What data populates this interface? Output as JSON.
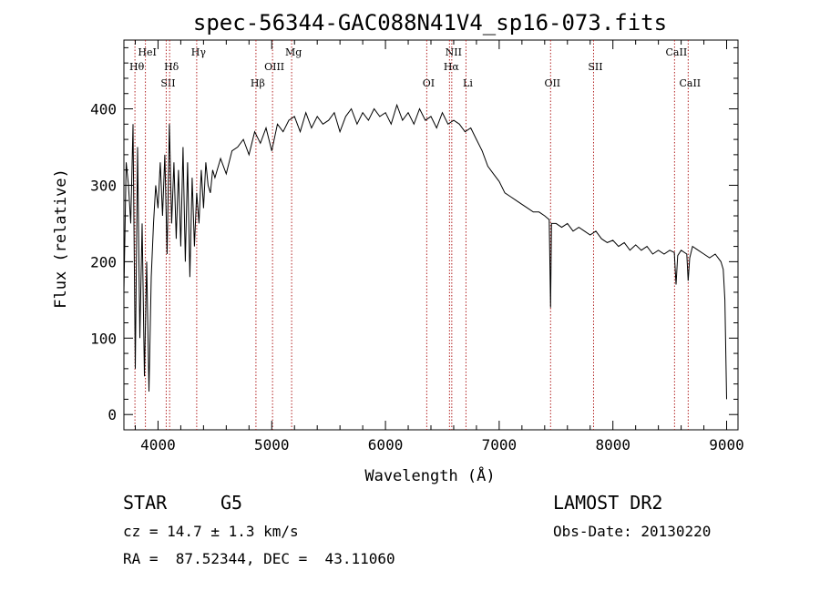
{
  "chart_data": {
    "type": "line",
    "title": "spec-56344-GAC088N41V4_sp16-073.fits",
    "xlabel": "Wavelength (Å)",
    "ylabel": "Flux (relative)",
    "xlim": [
      3700,
      9100
    ],
    "ylim": [
      -20,
      490
    ],
    "x_ticks": [
      4000,
      5000,
      6000,
      7000,
      8000,
      9000
    ],
    "y_ticks": [
      0,
      100,
      200,
      300,
      400
    ],
    "grid": false,
    "legend": "none",
    "line_color": "#000000",
    "marker_color": "#b22222",
    "spectral_lines": [
      {
        "label": "Hθ",
        "x": 3797,
        "row": 2
      },
      {
        "label": "HeI",
        "x": 3889,
        "row": 1
      },
      {
        "label": "SII",
        "x": 4072,
        "row": 3
      },
      {
        "label": "Hδ",
        "x": 4102,
        "row": 2
      },
      {
        "label": "Hγ",
        "x": 4340,
        "row": 1
      },
      {
        "label": "Hβ",
        "x": 4861,
        "row": 3
      },
      {
        "label": "OIII",
        "x": 5007,
        "row": 2
      },
      {
        "label": "Mg",
        "x": 5175,
        "row": 1
      },
      {
        "label": "OI",
        "x": 6363,
        "row": 3
      },
      {
        "label": "Hα",
        "x": 6563,
        "row": 2
      },
      {
        "label": "NII",
        "x": 6583,
        "row": 1
      },
      {
        "label": "Li",
        "x": 6708,
        "row": 3
      },
      {
        "label": "OII",
        "x": 7452,
        "row": 3
      },
      {
        "label": "SII",
        "x": 7830,
        "row": 2
      },
      {
        "label": "CaII",
        "x": 8542,
        "row": 1
      },
      {
        "label": "CaII",
        "x": 8662,
        "row": 3
      }
    ],
    "series": [
      {
        "x": [
          3700,
          3720,
          3740,
          3760,
          3780,
          3800,
          3820,
          3840,
          3860,
          3880,
          3900,
          3920,
          3940,
          3960,
          3980,
          4000,
          4020,
          4040,
          4060,
          4080,
          4100,
          4120,
          4140,
          4160,
          4180,
          4200,
          4220,
          4240,
          4260,
          4280,
          4300,
          4320,
          4340,
          4360,
          4380,
          4400,
          4420,
          4440,
          4460,
          4480,
          4500,
          4550,
          4600,
          4650,
          4700,
          4750,
          4800,
          4850,
          4900,
          4950,
          5000,
          5050,
          5100,
          5150,
          5200,
          5250,
          5300,
          5350,
          5400,
          5450,
          5500,
          5550,
          5600,
          5650,
          5700,
          5750,
          5800,
          5850,
          5900,
          5950,
          6000,
          6050,
          6100,
          6150,
          6200,
          6250,
          6300,
          6350,
          6400,
          6450,
          6500,
          6550,
          6600,
          6650,
          6700,
          6750,
          6800,
          6850,
          6900,
          6950,
          7000,
          7050,
          7100,
          7150,
          7200,
          7250,
          7300,
          7350,
          7400,
          7440,
          7452,
          7460,
          7500,
          7550,
          7600,
          7650,
          7700,
          7750,
          7800,
          7850,
          7900,
          7950,
          8000,
          8050,
          8100,
          8150,
          8200,
          8250,
          8300,
          8350,
          8400,
          8450,
          8500,
          8540,
          8555,
          8570,
          8600,
          8650,
          8662,
          8675,
          8700,
          8750,
          8800,
          8850,
          8900,
          8950,
          8970,
          8985,
          9000
        ],
        "y": [
          160,
          330,
          300,
          250,
          380,
          60,
          350,
          100,
          250,
          50,
          200,
          30,
          180,
          250,
          300,
          270,
          330,
          260,
          340,
          210,
          380,
          250,
          330,
          230,
          320,
          220,
          350,
          200,
          330,
          180,
          310,
          220,
          290,
          250,
          320,
          270,
          330,
          300,
          290,
          320,
          310,
          335,
          315,
          345,
          350,
          360,
          340,
          370,
          355,
          375,
          345,
          380,
          370,
          385,
          390,
          370,
          395,
          375,
          390,
          380,
          385,
          395,
          370,
          390,
          400,
          380,
          395,
          385,
          400,
          390,
          395,
          380,
          405,
          385,
          395,
          380,
          400,
          385,
          390,
          375,
          395,
          380,
          385,
          380,
          370,
          375,
          360,
          345,
          325,
          315,
          305,
          290,
          285,
          280,
          275,
          270,
          265,
          265,
          260,
          255,
          140,
          250,
          250,
          245,
          250,
          240,
          245,
          240,
          235,
          240,
          230,
          225,
          228,
          220,
          225,
          215,
          222,
          215,
          220,
          210,
          215,
          210,
          215,
          212,
          170,
          208,
          215,
          210,
          175,
          205,
          220,
          215,
          210,
          205,
          210,
          200,
          190,
          150,
          20
        ]
      }
    ],
    "info": {
      "object_class": "STAR",
      "subclass": "G5",
      "survey": "LAMOST DR2",
      "cz": "cz = 14.7 ± 1.3 km/s",
      "obs_date": "Obs-Date: 20130220",
      "coords": "RA =  87.52344, DEC =  43.11060"
    }
  }
}
